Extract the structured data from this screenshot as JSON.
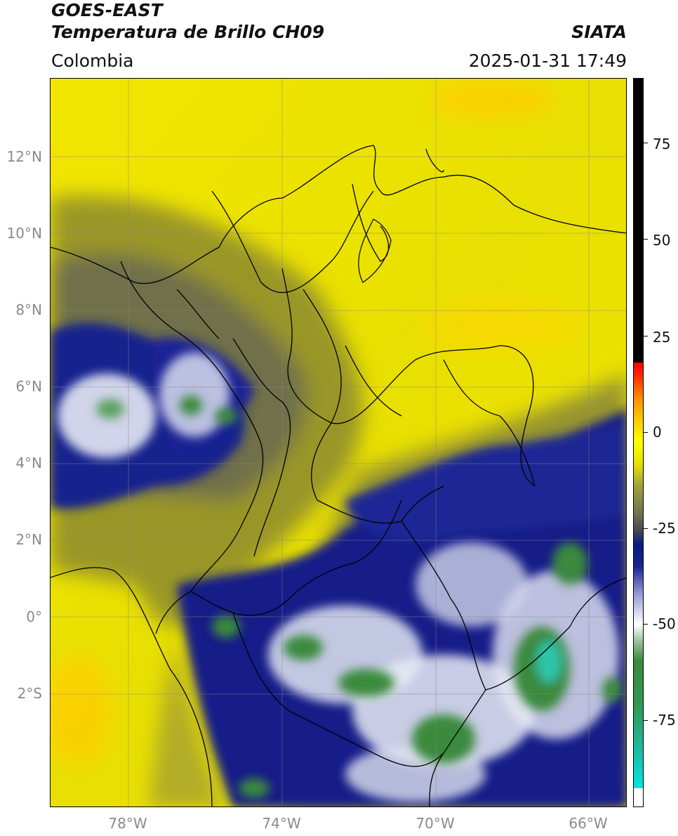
{
  "header": {
    "satellite": "GOES-EAST",
    "product": "Temperatura de Brillo CH09",
    "region": "Colombia",
    "source": "SIATA",
    "datetime": "2025-01-31 17:49"
  },
  "map": {
    "lat_ticks": [
      "12°N",
      "10°N",
      "8°N",
      "6°N",
      "4°N",
      "2°N",
      "0°",
      "2°S"
    ],
    "lon_ticks": [
      "78°W",
      "74°W",
      "70°W",
      "66°W"
    ],
    "extent": {
      "lon_min": -80,
      "lon_max": -65,
      "lat_min": -4.9,
      "lat_max": 14
    }
  },
  "colorbar": {
    "ticks": [
      "75",
      "50",
      "25",
      "0",
      "-25",
      "-50",
      "-75"
    ],
    "range": [
      -95,
      90
    ],
    "colors": [
      "#ffffff",
      "#00e0e0",
      "#2e8b3a",
      "#ffffff",
      "#0a1a8a",
      "#6e6e60",
      "#ffff00",
      "#ff8c00",
      "#ff0000",
      "#000000"
    ]
  }
}
